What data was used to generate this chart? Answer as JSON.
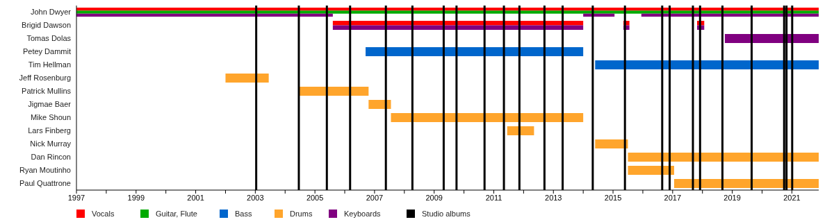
{
  "chart_data": {
    "type": "bar",
    "orientation": "horizontal",
    "categories": [
      "John Dwyer",
      "Brigid Dawson",
      "Tomas Dolas",
      "Petey Dammit",
      "Tim Hellman",
      "Jeff Rosenburg",
      "Patrick Mullins",
      "Jigmae Baer",
      "Mike Shoun",
      "Lars Finberg",
      "Nick Murray",
      "Dan Rincon",
      "Ryan Moutinho",
      "Paul Quattrone"
    ],
    "series": [
      {
        "name": "Vocals",
        "color": "#ff0000",
        "base": [
          1997,
          2005.6,
          null,
          null,
          null,
          null,
          null,
          null,
          null,
          null,
          null,
          null,
          null,
          null
        ],
        "values": [
          24.9,
          8.4,
          null,
          null,
          null,
          null,
          null,
          null,
          null,
          null,
          null,
          null,
          null,
          null
        ]
      },
      {
        "color": "#ff0000",
        "base": [
          null,
          2015.35,
          null,
          null,
          null,
          null,
          null,
          null,
          null,
          null,
          null,
          null,
          null,
          null
        ],
        "values": [
          null,
          0.2,
          null,
          null,
          null,
          null,
          null,
          null,
          null,
          null,
          null,
          null,
          null,
          null
        ]
      },
      {
        "color": "#ff0000",
        "base": [
          null,
          2017.82,
          null,
          null,
          null,
          null,
          null,
          null,
          null,
          null,
          null,
          null,
          null,
          null
        ],
        "values": [
          null,
          0.24,
          null,
          null,
          null,
          null,
          null,
          null,
          null,
          null,
          null,
          null,
          null,
          null
        ]
      },
      {
        "name": "Guitar, Flute",
        "color": "#00aa00",
        "base": [
          1997,
          null,
          null,
          null,
          null,
          null,
          null,
          null,
          null,
          null,
          null,
          null,
          null,
          null
        ],
        "values": [
          24.9,
          null,
          null,
          null,
          null,
          null,
          null,
          null,
          null,
          null,
          null,
          null,
          null,
          null
        ]
      },
      {
        "name": "Bass",
        "color": "#0066cc",
        "base": [
          null,
          null,
          null,
          2006.7,
          2014.4,
          null,
          null,
          null,
          null,
          null,
          null,
          null,
          null,
          null
        ],
        "values": [
          null,
          null,
          null,
          7.3,
          7.5,
          null,
          null,
          null,
          null,
          null,
          null,
          null,
          null,
          null
        ]
      },
      {
        "name": "Drums",
        "color": "#ffa52c",
        "base": [
          null,
          null,
          null,
          null,
          null,
          2002,
          2004.45,
          2006.8,
          2007.55,
          2011.45,
          2014.4,
          2015.5,
          2015.5,
          2017.05
        ],
        "values": [
          null,
          null,
          null,
          null,
          null,
          1.45,
          2.35,
          0.75,
          6.45,
          0.9,
          1.1,
          6.4,
          1.55,
          4.85
        ]
      },
      {
        "name": "Keyboards",
        "color": "#800080",
        "base": [
          1997,
          2005.6,
          2018.75,
          null,
          null,
          null,
          null,
          null,
          null,
          null,
          null,
          null,
          null,
          null
        ],
        "values": [
          8.6,
          8.4,
          3.15,
          null,
          null,
          null,
          null,
          null,
          null,
          null,
          null,
          null,
          null,
          null
        ]
      },
      {
        "color": "#800080",
        "base": [
          2014,
          2015.35,
          null,
          null,
          null,
          null,
          null,
          null,
          null,
          null,
          null,
          null,
          null,
          null
        ],
        "values": [
          1.05,
          0.2,
          null,
          null,
          null,
          null,
          null,
          null,
          null,
          null,
          null,
          null,
          null,
          null
        ]
      },
      {
        "color": "#800080",
        "base": [
          2015.95,
          2017.82,
          null,
          null,
          null,
          null,
          null,
          null,
          null,
          null,
          null,
          null,
          null,
          null
        ],
        "values": [
          5.95,
          0.24,
          null,
          null,
          null,
          null,
          null,
          null,
          null,
          null,
          null,
          null,
          null,
          null
        ]
      }
    ],
    "ref_lines": [
      {
        "axis": "x",
        "value": 2003.03,
        "label": "Studio albums",
        "color": "#000000"
      },
      {
        "axis": "x",
        "value": 2004.46,
        "color": "#000000"
      },
      {
        "axis": "x",
        "value": 2005.4,
        "color": "#000000"
      },
      {
        "axis": "x",
        "value": 2006.18,
        "color": "#000000"
      },
      {
        "axis": "x",
        "value": 2007.38,
        "color": "#000000"
      },
      {
        "axis": "x",
        "value": 2008.27,
        "color": "#000000"
      },
      {
        "axis": "x",
        "value": 2009.32,
        "color": "#000000"
      },
      {
        "axis": "x",
        "value": 2009.75,
        "color": "#000000"
      },
      {
        "axis": "x",
        "value": 2010.69,
        "color": "#000000"
      },
      {
        "axis": "x",
        "value": 2011.34,
        "color": "#000000"
      },
      {
        "axis": "x",
        "value": 2011.86,
        "color": "#000000"
      },
      {
        "axis": "x",
        "value": 2012.7,
        "color": "#000000"
      },
      {
        "axis": "x",
        "value": 2013.31,
        "color": "#000000"
      },
      {
        "axis": "x",
        "value": 2014.32,
        "color": "#000000"
      },
      {
        "axis": "x",
        "value": 2015.4,
        "color": "#000000"
      },
      {
        "axis": "x",
        "value": 2016.65,
        "color": "#000000"
      },
      {
        "axis": "x",
        "value": 2016.9,
        "color": "#000000"
      },
      {
        "axis": "x",
        "value": 2017.68,
        "color": "#000000"
      },
      {
        "axis": "x",
        "value": 2017.92,
        "color": "#000000"
      },
      {
        "axis": "x",
        "value": 2018.67,
        "color": "#000000"
      },
      {
        "axis": "x",
        "value": 2019.65,
        "color": "#000000"
      },
      {
        "axis": "x",
        "value": 2020.74,
        "color": "#000000"
      },
      {
        "axis": "x",
        "value": 2020.82,
        "color": "#000000"
      },
      {
        "axis": "x",
        "value": 2021.01,
        "color": "#000000"
      }
    ],
    "xlim": [
      1997,
      2021.9
    ],
    "xticks": [
      1997,
      {
        "value": 1998,
        "label": null
      },
      1999,
      {
        "value": 2000,
        "label": null
      },
      2001,
      {
        "value": 2002,
        "label": null
      },
      2003,
      {
        "value": 2004,
        "label": null
      },
      2005,
      {
        "value": 2006,
        "label": null
      },
      2007,
      {
        "value": 2008,
        "label": null
      },
      2009,
      {
        "value": 2010,
        "label": null
      },
      2011,
      {
        "value": 2012,
        "label": null
      },
      2013,
      {
        "value": 2014,
        "label": null
      },
      2015,
      {
        "value": 2016,
        "label": null
      },
      2017,
      {
        "value": 2018,
        "label": null
      },
      2019,
      {
        "value": 2020,
        "label": null
      },
      2021
    ],
    "grid": false,
    "legend": "bottom"
  }
}
